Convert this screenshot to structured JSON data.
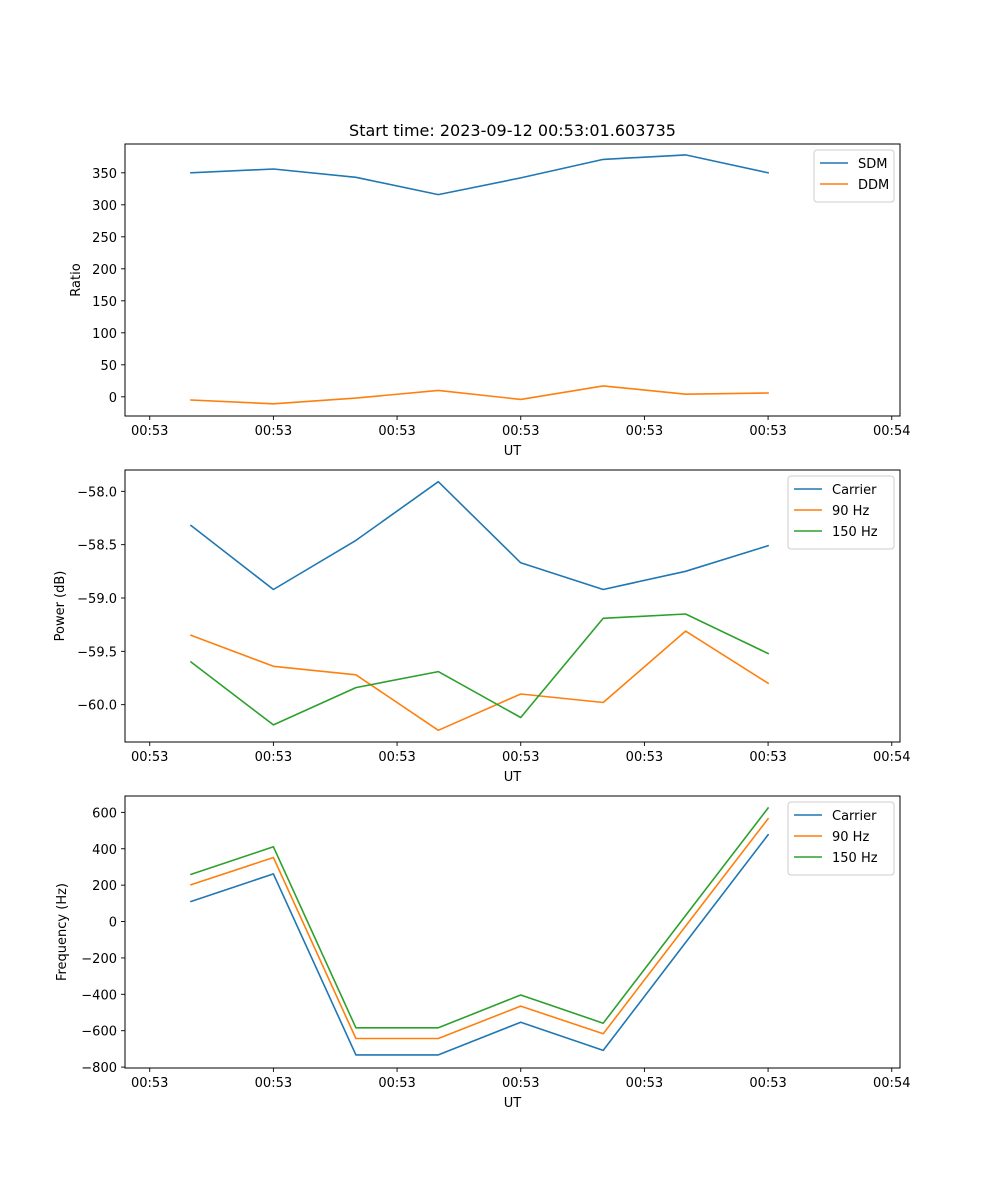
{
  "figure": {
    "title": "Start time: 2023-09-12 00:53:01.603735"
  },
  "chart_data": [
    {
      "type": "line",
      "title": "Start time: 2023-09-12 00:53:01.603735",
      "xlabel": "UT",
      "ylabel": "Ratio",
      "x_tick_labels": [
        "00:53",
        "00:53",
        "00:53",
        "00:53",
        "00:53",
        "00:53",
        "00:54"
      ],
      "x_index": [
        1,
        2,
        3,
        4,
        5,
        6,
        7,
        8
      ],
      "xlim_index": [
        0.2,
        9.6
      ],
      "x_tick_index": [
        0.5,
        2.0,
        3.5,
        5.0,
        6.5,
        8.0,
        9.5
      ],
      "ylim": [
        -30,
        395
      ],
      "y_ticks": [
        0,
        50,
        100,
        150,
        200,
        250,
        300,
        350
      ],
      "y_tick_labels": [
        "0",
        "50",
        "100",
        "150",
        "200",
        "250",
        "300",
        "350"
      ],
      "grid": false,
      "legend_position": "top-right",
      "series": [
        {
          "name": "SDM",
          "color": "#1f77b4",
          "values": [
            350,
            356,
            343,
            316,
            342,
            371,
            378,
            350
          ]
        },
        {
          "name": "DDM",
          "color": "#ff7f0e",
          "values": [
            -5,
            -11,
            -2,
            10,
            -4,
            17,
            4,
            6
          ]
        }
      ]
    },
    {
      "type": "line",
      "title": "",
      "xlabel": "UT",
      "ylabel": "Power (dB)",
      "x_tick_labels": [
        "00:53",
        "00:53",
        "00:53",
        "00:53",
        "00:53",
        "00:53",
        "00:54"
      ],
      "x_index": [
        1,
        2,
        3,
        4,
        5,
        6,
        7,
        8
      ],
      "xlim_index": [
        0.2,
        9.6
      ],
      "x_tick_index": [
        0.5,
        2.0,
        3.5,
        5.0,
        6.5,
        8.0,
        9.5
      ],
      "ylim": [
        -60.35,
        -57.8
      ],
      "y_ticks": [
        -60.0,
        -59.5,
        -59.0,
        -58.5,
        -58.0
      ],
      "y_tick_labels": [
        "−60.0",
        "−59.5",
        "−59.0",
        "−58.5",
        "−58.0"
      ],
      "grid": false,
      "legend_position": "top-right",
      "series": [
        {
          "name": "Carrier",
          "color": "#1f77b4",
          "values": [
            -58.32,
            -58.92,
            -58.46,
            -57.91,
            -58.67,
            -58.92,
            -58.75,
            -58.51
          ]
        },
        {
          "name": "90 Hz",
          "color": "#ff7f0e",
          "values": [
            -59.35,
            -59.64,
            -59.72,
            -60.24,
            -59.9,
            -59.98,
            -59.31,
            -59.8
          ]
        },
        {
          "name": "150 Hz",
          "color": "#2ca02c",
          "values": [
            -59.6,
            -60.19,
            -59.84,
            -59.69,
            -60.12,
            -59.19,
            -59.15,
            -59.52
          ]
        }
      ]
    },
    {
      "type": "line",
      "title": "",
      "xlabel": "UT",
      "ylabel": "Frequency (Hz)",
      "x_tick_labels": [
        "00:53",
        "00:53",
        "00:53",
        "00:53",
        "00:53",
        "00:53",
        "00:54"
      ],
      "x_index": [
        1,
        2,
        3,
        4,
        5,
        6,
        7,
        8
      ],
      "xlim_index": [
        0.2,
        9.6
      ],
      "x_tick_index": [
        0.5,
        2.0,
        3.5,
        5.0,
        6.5,
        8.0,
        9.5
      ],
      "ylim": [
        -805,
        690
      ],
      "y_ticks": [
        -800,
        -600,
        -400,
        -200,
        0,
        200,
        400,
        600
      ],
      "y_tick_labels": [
        "−800",
        "−600",
        "−400",
        "−200",
        "0",
        "200",
        "400",
        "600"
      ],
      "grid": false,
      "legend_position": "top-right",
      "series": [
        {
          "name": "Carrier",
          "color": "#1f77b4",
          "values": [
            110,
            262,
            -733,
            -733,
            -553,
            -708,
            -115,
            477
          ]
        },
        {
          "name": "90 Hz",
          "color": "#ff7f0e",
          "values": [
            202,
            352,
            -643,
            -643,
            -465,
            -617,
            -25,
            565
          ]
        },
        {
          "name": "150 Hz",
          "color": "#2ca02c",
          "values": [
            259,
            411,
            -584,
            -584,
            -404,
            -559,
            33,
            624
          ]
        }
      ]
    }
  ]
}
